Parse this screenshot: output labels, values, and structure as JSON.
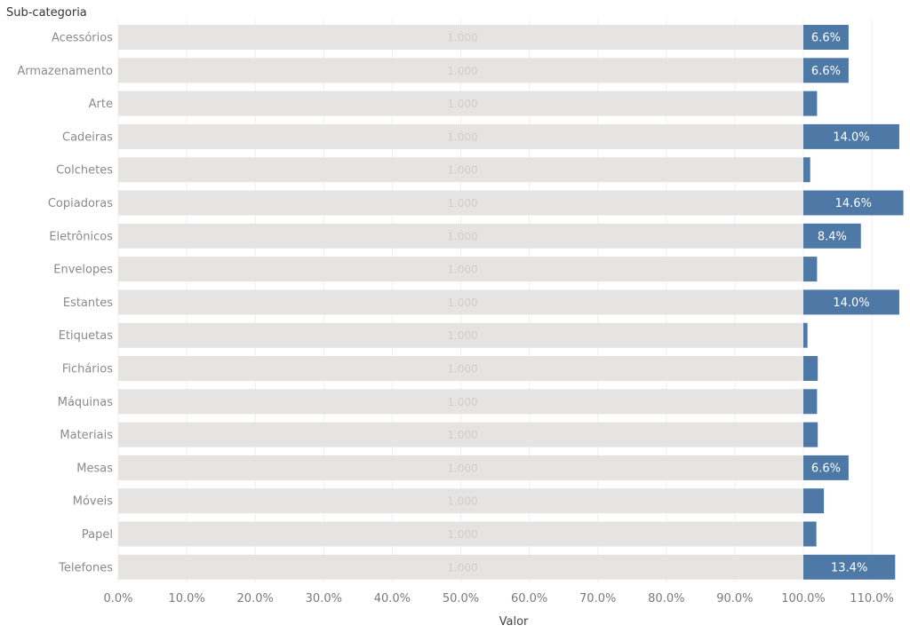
{
  "chart_data": {
    "type": "bar",
    "orientation": "horizontal",
    "row_header": "Sub-categoria",
    "xlabel": "Valor",
    "xlim": [
      0,
      115
    ],
    "x_ticks": [
      "0.0%",
      "10.0%",
      "20.0%",
      "30.0%",
      "40.0%",
      "50.0%",
      "60.0%",
      "70.0%",
      "80.0%",
      "90.0%",
      "100.0%",
      "110.0%"
    ],
    "x_tick_values": [
      0,
      10,
      20,
      30,
      40,
      50,
      60,
      70,
      80,
      90,
      100,
      110
    ],
    "categories": [
      "Acessórios",
      "Armazenamento",
      "Arte",
      "Cadeiras",
      "Colchetes",
      "Copiadoras",
      "Eletrônicos",
      "Envelopes",
      "Estantes",
      "Etiquetas",
      "Fichários",
      "Máquinas",
      "Materiais",
      "Mesas",
      "Móveis",
      "Papel",
      "Telefones"
    ],
    "series": [
      {
        "values": [
          1,
          1,
          1,
          1,
          1,
          1,
          1,
          1,
          1,
          1,
          1,
          1,
          1,
          1,
          1,
          1,
          1
        ],
        "labels": [
          "1.000",
          "1.000",
          "1.000",
          "1.000",
          "1.000",
          "1.000",
          "1.000",
          "1.000",
          "1.000",
          "1.000",
          "1.000",
          "1.000",
          "1.000",
          "1.000",
          "1.000",
          "1.000",
          "1.000"
        ],
        "color": "#e6e4e2",
        "label_color": "#cfcfcf"
      },
      {
        "values": [
          6.6,
          6.6,
          2.0,
          14.0,
          1.0,
          14.6,
          8.4,
          2.0,
          14.0,
          0.6,
          2.1,
          2.0,
          2.1,
          6.6,
          3.0,
          1.9,
          13.4
        ],
        "labels": [
          "6.6%",
          "6.6%",
          "",
          "14.0%",
          "",
          "14.6%",
          "8.4%",
          "",
          "14.0%",
          "",
          "",
          "",
          "",
          "6.6%",
          "",
          "",
          "13.4%"
        ],
        "color": "#4e79a7",
        "label_color": "#ffffff"
      }
    ],
    "grid": true,
    "colors": {
      "bar_background": "#e6e4e2",
      "bar_value": "#4e79a7",
      "grid": "#eeeeee"
    }
  }
}
